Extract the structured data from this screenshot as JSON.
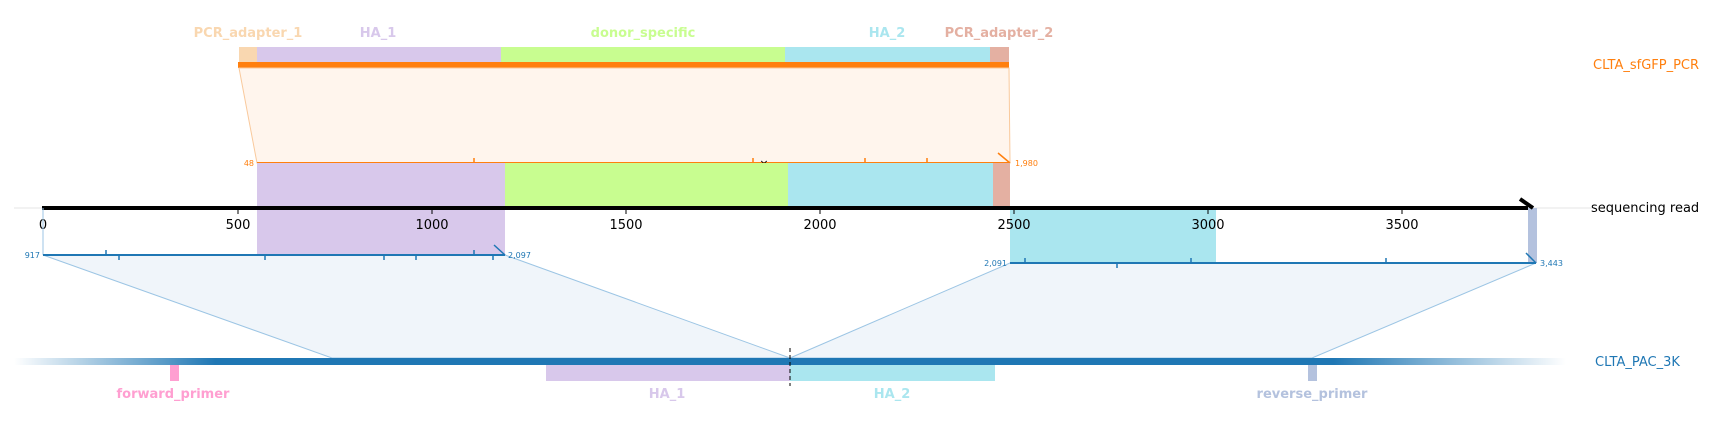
{
  "read_track": {
    "name": "sequencing read",
    "axis_ticks": [
      "0",
      "500",
      "1000",
      "1500",
      "2000",
      "2500",
      "3000",
      "3500"
    ],
    "length": 3843
  },
  "top_track": {
    "name": "CLTA_sfGFP_PCR",
    "color": "#ff7f0e",
    "features": [
      {
        "name": "PCR_adapter_1",
        "color": "#f9d7b0"
      },
      {
        "name": "HA_1",
        "color": "#d8c8eb"
      },
      {
        "name": "donor_specific",
        "color": "#c8fd90"
      },
      {
        "name": "HA_2",
        "color": "#aae6ef"
      },
      {
        "name": "PCR_adapter_2",
        "color": "#e4b0a2"
      }
    ],
    "alignment": {
      "ref_start": "48",
      "ref_end": "1,980"
    }
  },
  "bottom_track": {
    "name": "CLTA_PAC_3K",
    "color": "#1f77b4",
    "features": [
      {
        "name": "forward_primer",
        "color": "#ff9fd1"
      },
      {
        "name": "HA_1",
        "color": "#d8c8eb"
      },
      {
        "name": "HA_2",
        "color": "#aae6ef"
      },
      {
        "name": "reverse_primer",
        "color": "#b4c2de"
      }
    ],
    "alignments": [
      {
        "ref_start": "917",
        "ref_end": "2,097"
      },
      {
        "ref_start": "2,091",
        "ref_end": "3,443"
      }
    ]
  }
}
